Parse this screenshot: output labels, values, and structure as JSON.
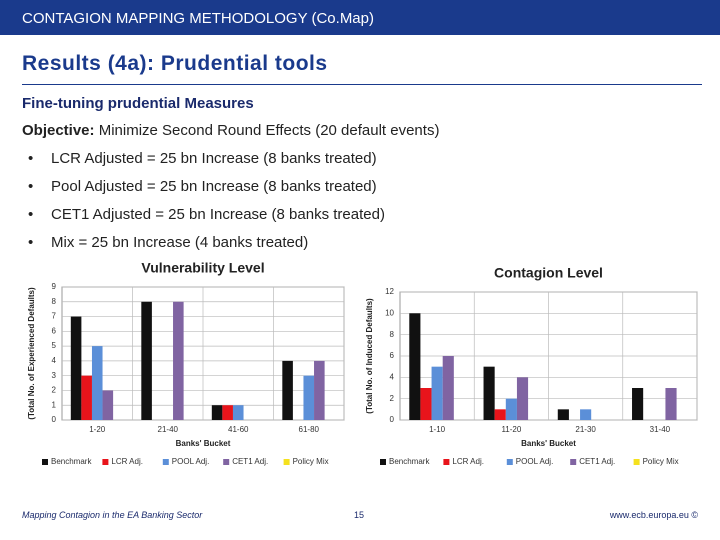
{
  "header": {
    "title": "CONTAGION MAPPING METHODOLOGY (Co.Map)"
  },
  "slide_title": "Results (4a): Prudential tools",
  "subtitle": "Fine-tuning prudential Measures",
  "objective": {
    "label": "Objective:",
    "text": "Minimize Second Round Effects (20 default events)"
  },
  "bullets": [
    "LCR Adjusted = 25 bn Increase (8 banks treated)",
    "Pool Adjusted = 25 bn Increase (8 banks treated)",
    "CET1 Adjusted = 25 bn Increase (8 banks treated)",
    "Mix = 25 bn Increase (4 banks treated)"
  ],
  "chart_data": [
    {
      "type": "bar",
      "title": "Vulnerability Level",
      "x_label": "Banks' Bucket",
      "y_label": "(Total No. of Experienced Defaults)",
      "categories": [
        "1-20",
        "21-40",
        "41-60",
        "61-80"
      ],
      "series": [
        {
          "name": "Benchmark",
          "color": "#111111",
          "values": [
            7,
            8,
            1,
            4
          ]
        },
        {
          "name": "LCR Adj.",
          "color": "#e8141b",
          "values": [
            3,
            0,
            1,
            0
          ]
        },
        {
          "name": "POOL Adj.",
          "color": "#5b8fd8",
          "values": [
            5,
            0,
            1,
            3
          ]
        },
        {
          "name": "CET1 Adj.",
          "color": "#8064a2",
          "values": [
            2,
            8,
            0,
            4
          ]
        },
        {
          "name": "Policy Mix",
          "color": "#f5e11e",
          "values": [
            0,
            0,
            0,
            0
          ]
        }
      ],
      "ylim": [
        0,
        9
      ],
      "yticks": [
        0,
        1,
        2,
        3,
        4,
        5,
        6,
        7,
        8,
        9
      ],
      "grid": true
    },
    {
      "type": "bar",
      "title": "Contagion Level",
      "x_label": "Banks' Bucket",
      "y_label": "(Total No. of Induced Defaults)",
      "categories": [
        "1-10",
        "11-20",
        "21-30",
        "31-40"
      ],
      "series": [
        {
          "name": "Benchmark",
          "color": "#111111",
          "values": [
            10,
            5,
            1,
            3
          ]
        },
        {
          "name": "LCR Adj.",
          "color": "#e8141b",
          "values": [
            3,
            1,
            0,
            0
          ]
        },
        {
          "name": "POOL Adj.",
          "color": "#5b8fd8",
          "values": [
            5,
            2,
            1,
            0
          ]
        },
        {
          "name": "CET1 Adj.",
          "color": "#8064a2",
          "values": [
            6,
            4,
            0,
            3
          ]
        },
        {
          "name": "Policy Mix",
          "color": "#f5e11e",
          "values": [
            0,
            0,
            0,
            0
          ]
        }
      ],
      "ylim": [
        0,
        12
      ],
      "yticks": [
        0,
        2,
        4,
        6,
        8,
        10,
        12
      ],
      "grid": true
    }
  ],
  "footer": {
    "left": "Mapping Contagion in the EA Banking Sector",
    "page": "15",
    "right": "www.ecb.europa.eu ©"
  }
}
